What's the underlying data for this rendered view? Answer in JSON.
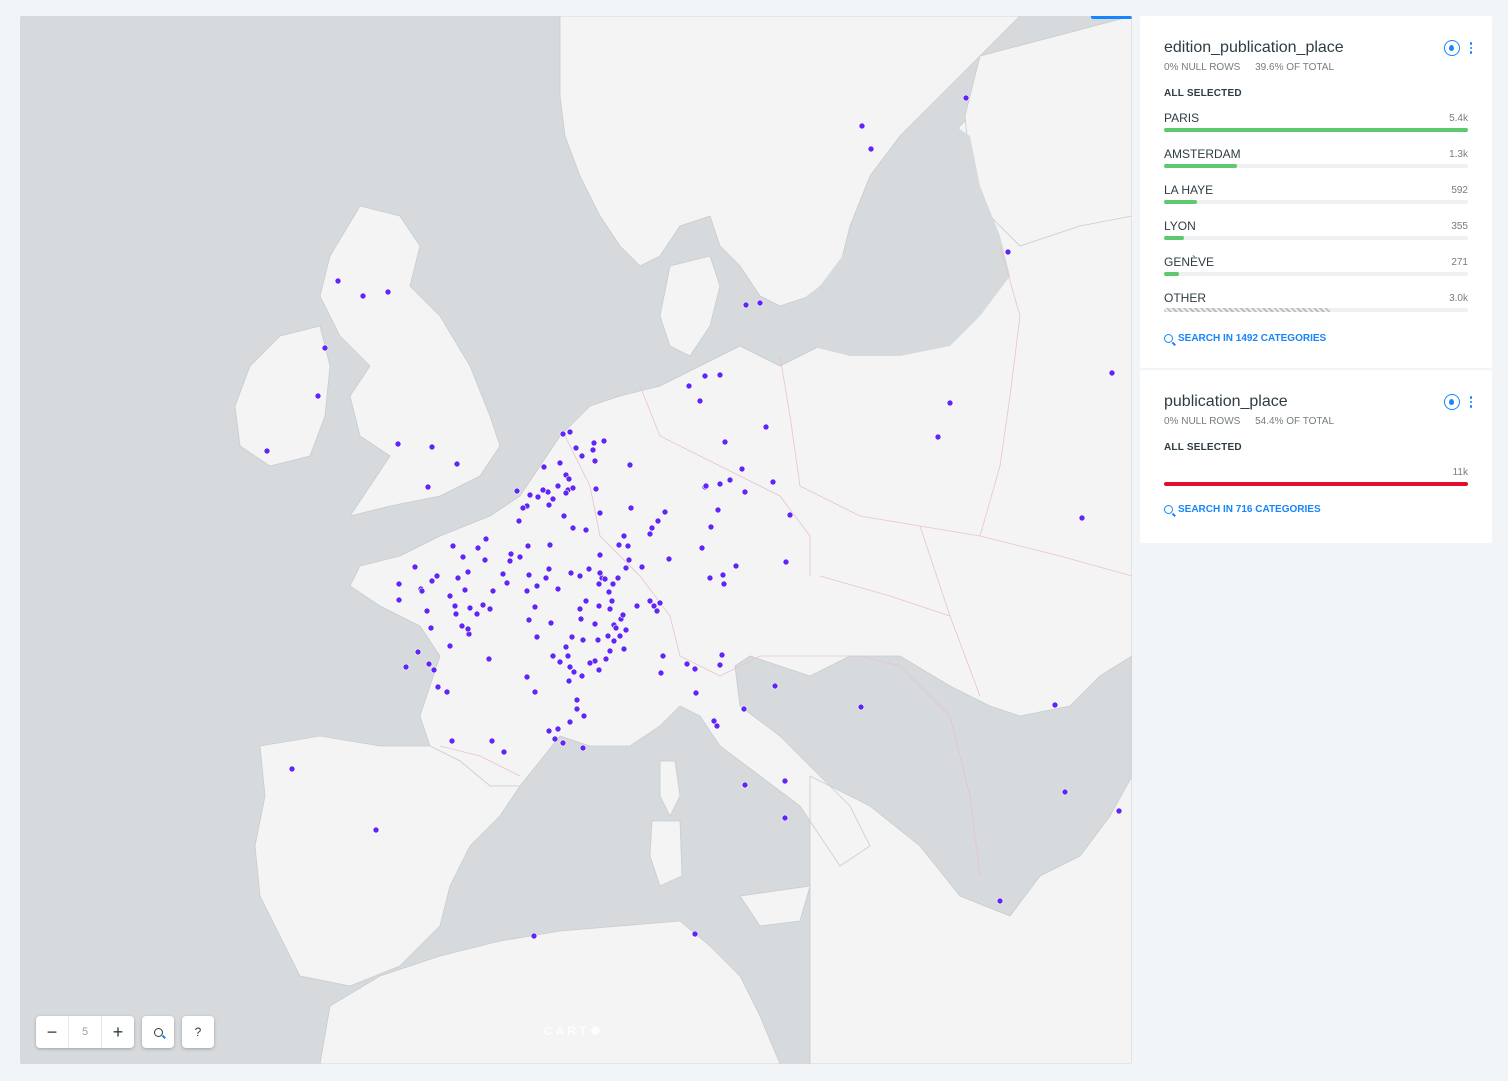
{
  "map": {
    "zoom_level": "5",
    "zoom_out_label": "−",
    "zoom_in_label": "+",
    "search_icon": "search-icon",
    "help_label": "?",
    "attribution": "CART",
    "point_color": "#6125f5"
  },
  "widgets": [
    {
      "title": "edition_publication_place",
      "null_rows": "0% NULL ROWS",
      "of_total": "39.6% OF TOTAL",
      "status": "ALL SELECTED",
      "categories": [
        {
          "name": "PARIS",
          "value": "5.4k",
          "fraction": 1.0
        },
        {
          "name": "AMSTERDAM",
          "value": "1.3k",
          "fraction": 0.24
        },
        {
          "name": "LA HAYE",
          "value": "592",
          "fraction": 0.11
        },
        {
          "name": "LYON",
          "value": "355",
          "fraction": 0.066
        },
        {
          "name": "GENÈVE",
          "value": "271",
          "fraction": 0.05
        },
        {
          "name": "OTHER",
          "value": "3.0k",
          "fraction": 0.55
        }
      ],
      "search_label": "SEARCH IN 1492 CATEGORIES"
    },
    {
      "title": "publication_place",
      "null_rows": "0% NULL ROWS",
      "of_total": "54.4% OF TOTAL",
      "status": "ALL SELECTED",
      "single_value": "11k",
      "search_label": "SEARCH IN 716 CATEGORIES"
    }
  ]
}
